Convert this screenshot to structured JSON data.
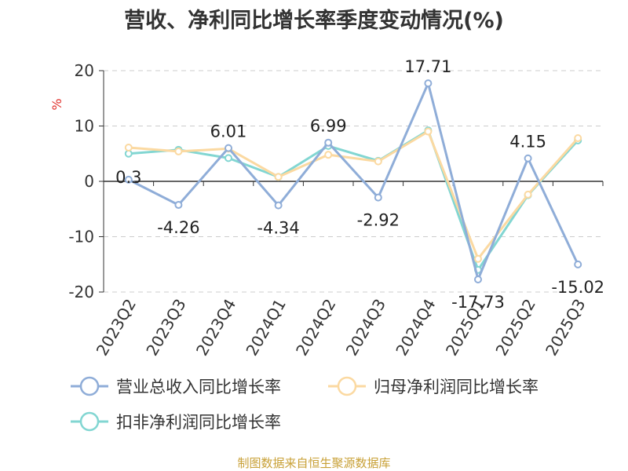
{
  "chart_data": {
    "type": "line",
    "title": "营收、净利同比增长率季度变动情况(%)",
    "ylabel": "%",
    "ylim": [
      -20,
      20
    ],
    "yticks": [
      20,
      10,
      0,
      -10,
      -20
    ],
    "grid": true,
    "legend_position": "bottom",
    "categories": [
      "2023Q2",
      "2023Q3",
      "2023Q4",
      "2024Q1",
      "2024Q2",
      "2024Q3",
      "2024Q4",
      "2025Q1",
      "2025Q2",
      "2025Q3"
    ],
    "series": [
      {
        "name": "营业总收入同比增长率",
        "color": "#8fadd8",
        "values": [
          0.3,
          -4.26,
          6.01,
          -4.34,
          6.99,
          -2.92,
          17.71,
          -17.73,
          4.15,
          -15.02
        ],
        "labels": [
          "0.3",
          "-4.26",
          "6.01",
          "-4.34",
          "6.99",
          "-2.92",
          "17.71",
          "-17.73",
          "4.15",
          "-15.02"
        ]
      },
      {
        "name": "归母净利润同比增长率",
        "color": "#fbd9a1",
        "values": [
          6.1,
          5.4,
          5.9,
          0.8,
          4.8,
          3.6,
          9.0,
          -14.0,
          -2.4,
          7.8
        ]
      },
      {
        "name": "扣非净利润同比增长率",
        "color": "#82d6d2",
        "values": [
          5.0,
          5.7,
          4.2,
          0.8,
          6.4,
          3.7,
          9.2,
          -16.0,
          -2.5,
          7.4
        ]
      }
    ]
  },
  "source": "制图数据来自恒生聚源数据库"
}
